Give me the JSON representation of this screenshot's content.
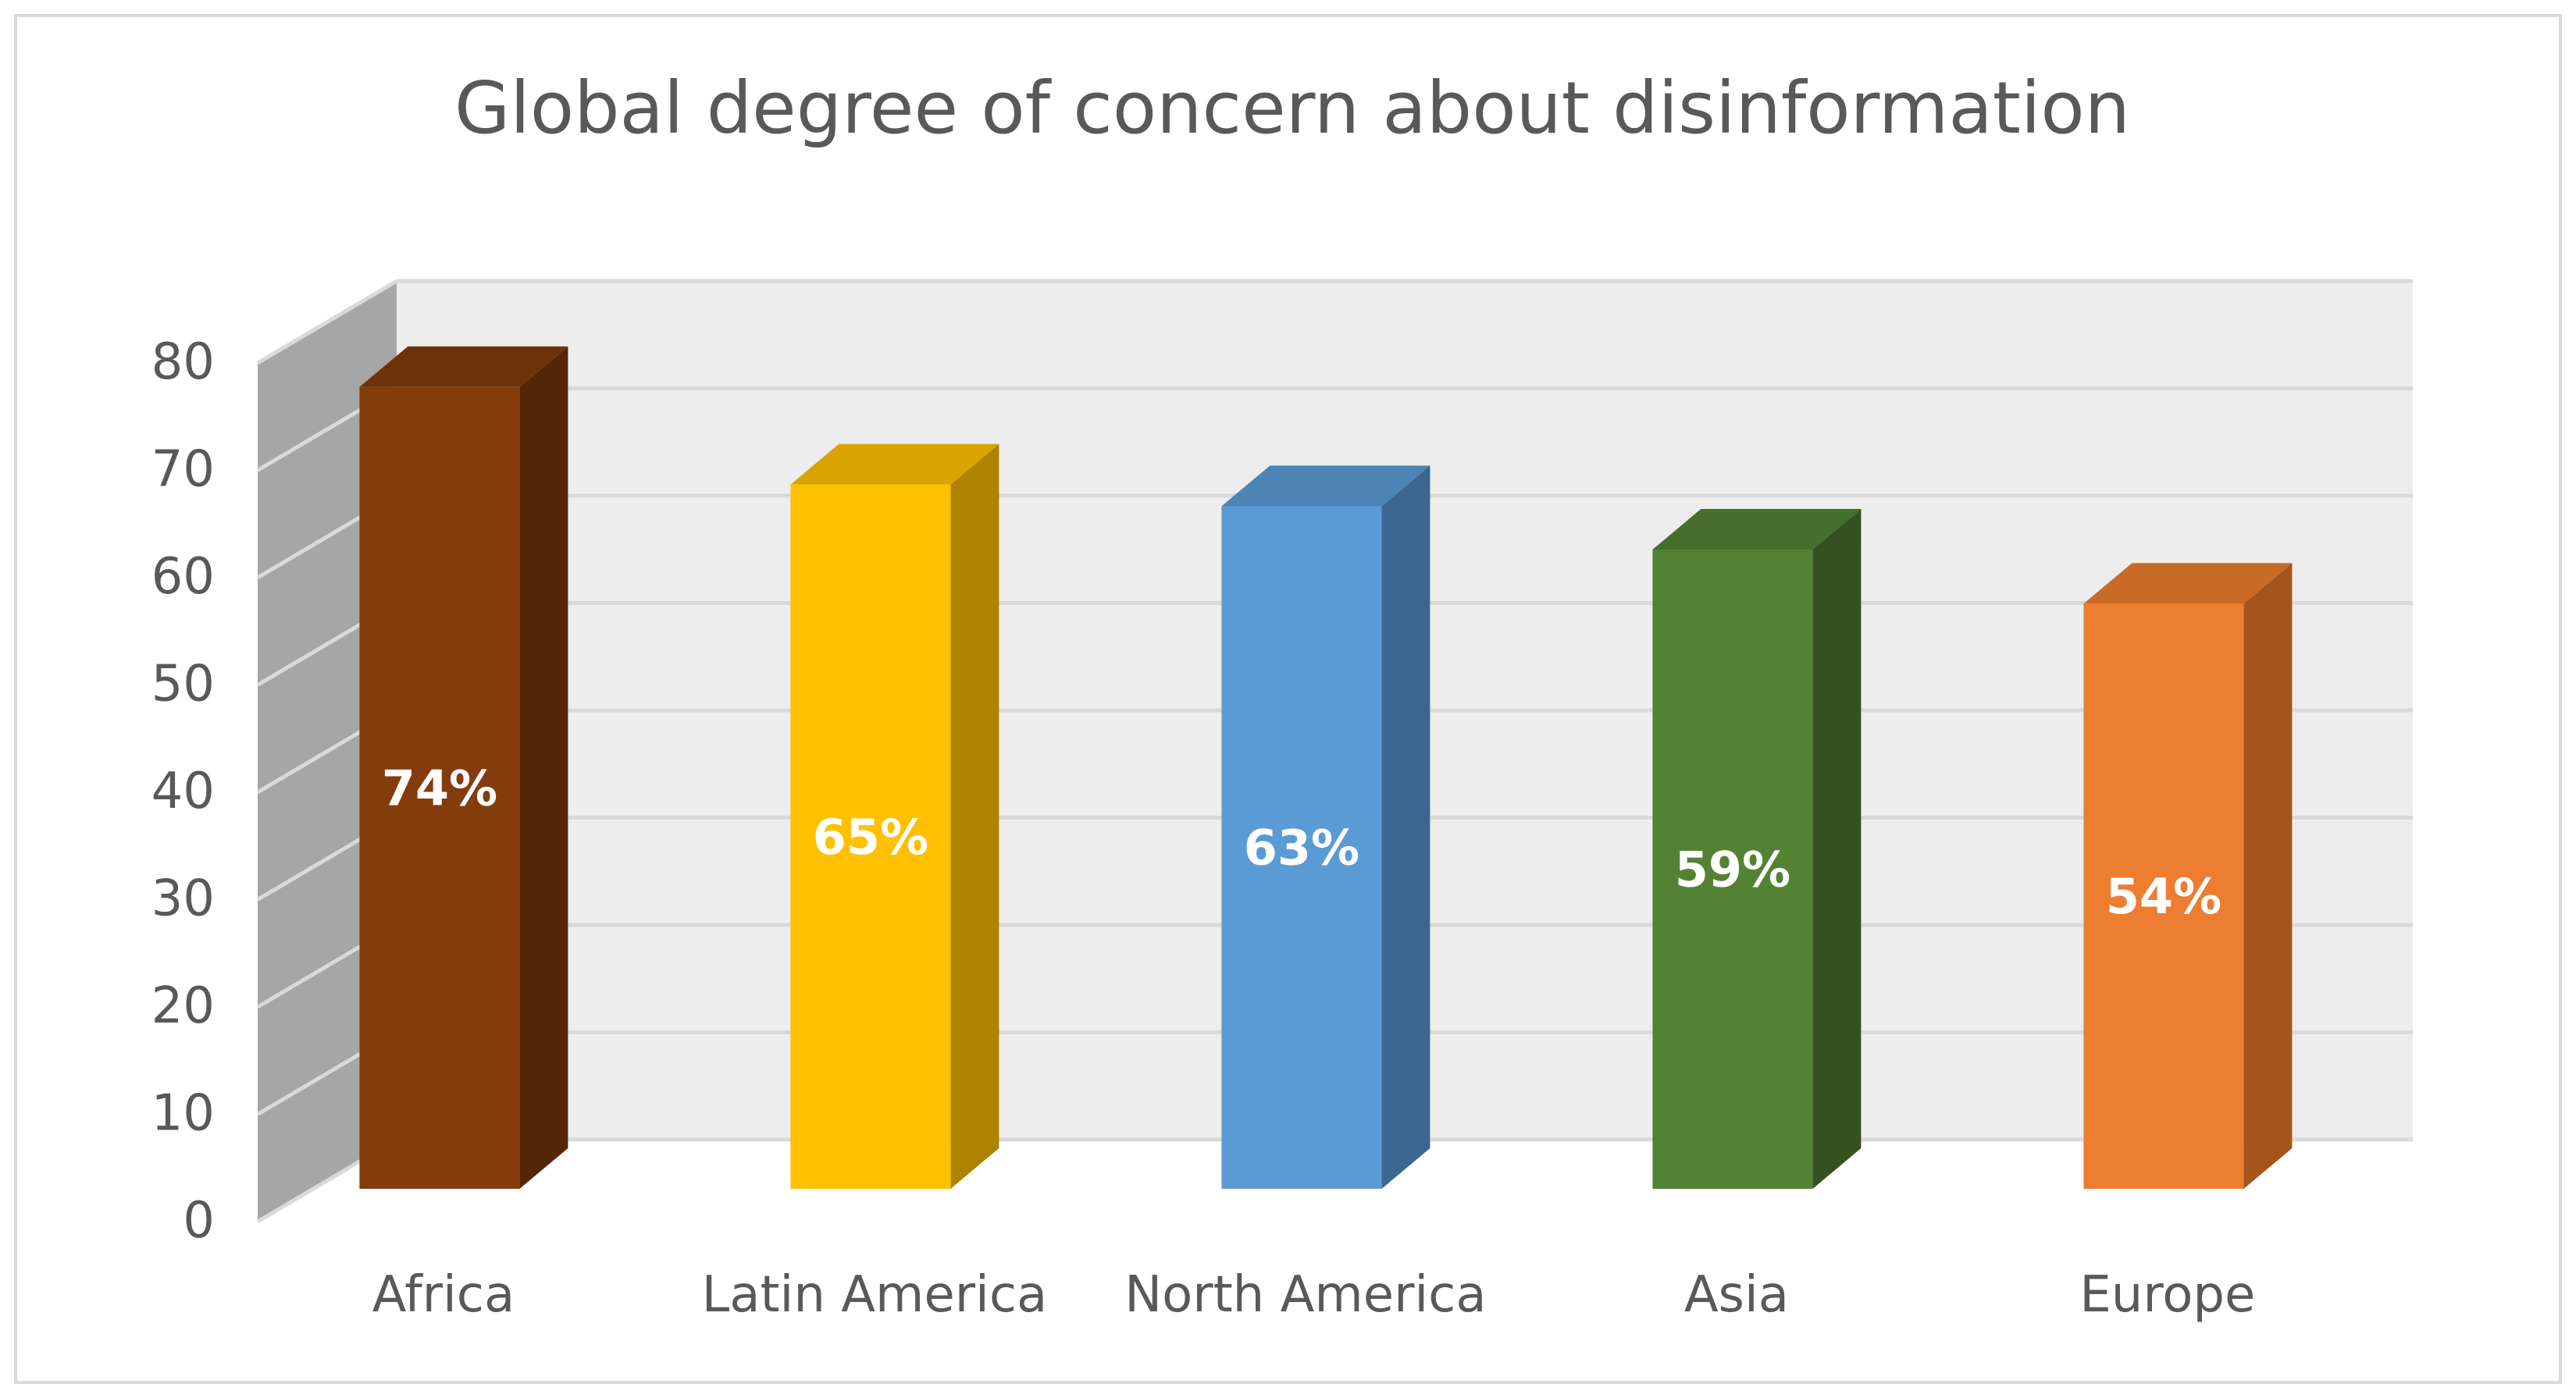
{
  "chart_data": {
    "type": "bar",
    "title": "Global degree of concern about disinformation",
    "xlabel": "",
    "ylabel": "",
    "categories": [
      "Africa",
      "Latin America",
      "North America",
      "Asia",
      "Europe"
    ],
    "values": [
      74,
      65,
      63,
      59,
      54
    ],
    "data_labels": [
      "74%",
      "65%",
      "63%",
      "59%",
      "54%"
    ],
    "ylim": [
      0,
      80
    ],
    "yticks": [
      0,
      10,
      20,
      30,
      40,
      50,
      60,
      70,
      80
    ],
    "ytick_labels": [
      "0",
      "10",
      "20",
      "30",
      "40",
      "50",
      "60",
      "70",
      "80"
    ],
    "grid": true,
    "legend": "none",
    "style": "3d-column",
    "colors": {
      "bars": [
        "#843C0C",
        "#FFC000",
        "#5B9BD5",
        "#548235",
        "#ED7D31"
      ],
      "bar_sides": [
        "#552607",
        "#AE8300",
        "#3A6690",
        "#345221",
        "#A5551C"
      ],
      "bar_tops": [
        "#6E320A",
        "#D9A400",
        "#4C84B6",
        "#466E2C",
        "#C96A27"
      ],
      "back_wall": "#EDEDED",
      "side_wall": "#A6A6A6",
      "gridline": "#D9D9D9",
      "text": "#595959",
      "data_label": "#FFFFFF"
    }
  }
}
